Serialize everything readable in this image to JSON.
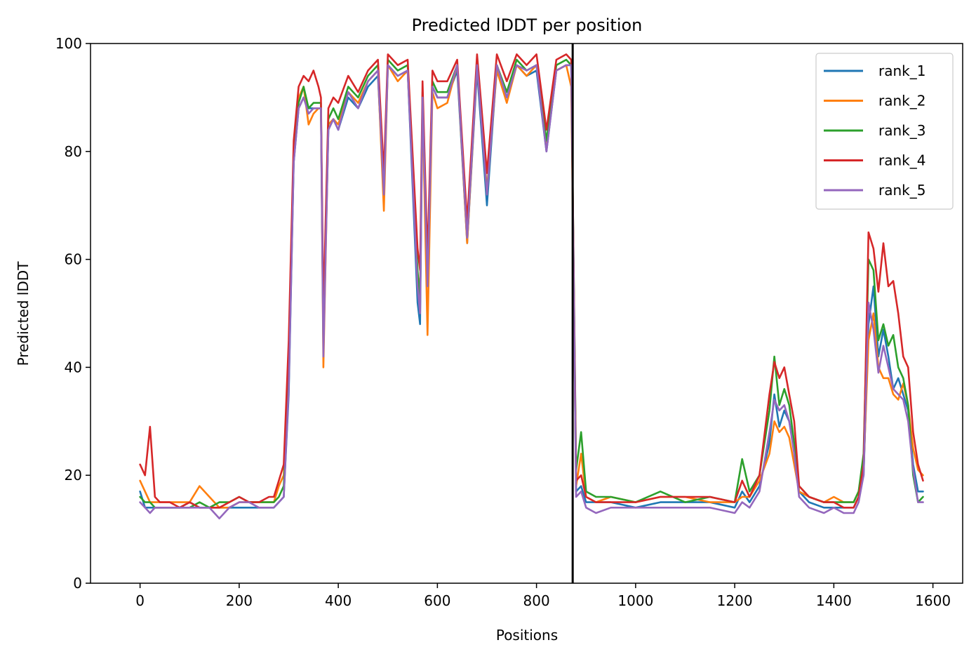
{
  "chart_data": {
    "type": "line",
    "title": "Predicted lDDT per position",
    "xlabel": "Positions",
    "ylabel": "Predicted lDDT",
    "xlim": [
      -100,
      1660
    ],
    "ylim": [
      0,
      100
    ],
    "xticks": [
      0,
      200,
      400,
      600,
      800,
      1000,
      1200,
      1400,
      1600
    ],
    "yticks": [
      0,
      20,
      40,
      60,
      80,
      100
    ],
    "grid": false,
    "legend_position": "top-right",
    "chain_boundary_x": 873,
    "sampled_positions": [
      0,
      10,
      20,
      30,
      40,
      60,
      80,
      100,
      120,
      140,
      160,
      180,
      200,
      220,
      240,
      260,
      270,
      280,
      290,
      300,
      310,
      320,
      330,
      340,
      350,
      360,
      365,
      370,
      380,
      390,
      400,
      420,
      440,
      460,
      480,
      492,
      500,
      520,
      540,
      560,
      565,
      570,
      580,
      590,
      600,
      620,
      640,
      660,
      680,
      700,
      720,
      740,
      760,
      780,
      800,
      820,
      840,
      860,
      870,
      880,
      890,
      900,
      920,
      950,
      1000,
      1050,
      1100,
      1150,
      1200,
      1215,
      1230,
      1250,
      1270,
      1280,
      1290,
      1300,
      1310,
      1320,
      1330,
      1350,
      1380,
      1400,
      1420,
      1440,
      1450,
      1460,
      1470,
      1480,
      1490,
      1500,
      1510,
      1520,
      1530,
      1540,
      1550,
      1560,
      1570,
      1580
    ],
    "series": [
      {
        "name": "rank_1",
        "color": "#1f77b4",
        "values": [
          17,
          14,
          14,
          14,
          14,
          14,
          14,
          15,
          14,
          14,
          14,
          14,
          14,
          14,
          14,
          14,
          14,
          15,
          16,
          35,
          78,
          88,
          90,
          88,
          88,
          88,
          88,
          45,
          84,
          86,
          84,
          90,
          88,
          92,
          94,
          72,
          96,
          94,
          95,
          52,
          48,
          90,
          56,
          92,
          90,
          90,
          95,
          63,
          95,
          70,
          96,
          90,
          96,
          94,
          95,
          80,
          95,
          96,
          96,
          17,
          18,
          15,
          15,
          15,
          14,
          15,
          15,
          15,
          14,
          17,
          15,
          18,
          26,
          35,
          29,
          32,
          30,
          25,
          17,
          15,
          14,
          14,
          14,
          14,
          16,
          20,
          48,
          55,
          42,
          47,
          42,
          36,
          38,
          35,
          32,
          22,
          17,
          17
        ]
      },
      {
        "name": "rank_2",
        "color": "#ff7f0e",
        "values": [
          19,
          17,
          15,
          15,
          15,
          15,
          15,
          15,
          18,
          16,
          14,
          14,
          15,
          15,
          15,
          15,
          15,
          18,
          20,
          40,
          80,
          90,
          92,
          85,
          87,
          88,
          88,
          40,
          85,
          86,
          85,
          91,
          89,
          93,
          95,
          69,
          96,
          93,
          95,
          57,
          55,
          89,
          46,
          91,
          88,
          89,
          96,
          63,
          96,
          73,
          95,
          89,
          96,
          94,
          96,
          81,
          95,
          96,
          92,
          18,
          24,
          16,
          15,
          16,
          15,
          16,
          16,
          15,
          15,
          16,
          16,
          19,
          24,
          30,
          28,
          29,
          27,
          22,
          17,
          16,
          15,
          16,
          15,
          15,
          17,
          21,
          45,
          50,
          40,
          38,
          38,
          35,
          34,
          37,
          33,
          25,
          21,
          20
        ]
      },
      {
        "name": "rank_3",
        "color": "#2ca02c",
        "values": [
          16,
          15,
          15,
          14,
          14,
          14,
          14,
          14,
          15,
          14,
          15,
          15,
          16,
          15,
          15,
          15,
          15,
          16,
          18,
          38,
          79,
          89,
          92,
          88,
          89,
          89,
          89,
          44,
          86,
          88,
          86,
          92,
          90,
          94,
          96,
          73,
          97,
          95,
          96,
          58,
          52,
          91,
          58,
          93,
          91,
          91,
          96,
          65,
          96,
          72,
          96,
          91,
          97,
          95,
          96,
          82,
          96,
          97,
          96,
          21,
          28,
          17,
          16,
          16,
          15,
          17,
          15,
          16,
          15,
          23,
          17,
          20,
          32,
          42,
          33,
          36,
          33,
          26,
          18,
          16,
          15,
          15,
          15,
          15,
          17,
          24,
          60,
          58,
          45,
          48,
          44,
          46,
          40,
          38,
          33,
          20,
          15,
          16
        ]
      },
      {
        "name": "rank_4",
        "color": "#d62728",
        "values": [
          22,
          20,
          29,
          16,
          15,
          15,
          14,
          15,
          14,
          14,
          14,
          15,
          16,
          15,
          15,
          16,
          16,
          19,
          22,
          45,
          82,
          92,
          94,
          93,
          95,
          92,
          90,
          50,
          88,
          90,
          89,
          94,
          91,
          95,
          97,
          76,
          98,
          96,
          97,
          62,
          58,
          93,
          60,
          95,
          93,
          93,
          97,
          67,
          98,
          76,
          98,
          93,
          98,
          96,
          98,
          84,
          97,
          98,
          97,
          19,
          20,
          16,
          15,
          15,
          15,
          16,
          16,
          16,
          15,
          19,
          16,
          20,
          35,
          41,
          38,
          40,
          35,
          30,
          18,
          16,
          15,
          15,
          14,
          14,
          16,
          22,
          65,
          62,
          54,
          63,
          55,
          56,
          50,
          42,
          40,
          28,
          22,
          19
        ]
      },
      {
        "name": "rank_5",
        "color": "#9467bd",
        "values": [
          15,
          14,
          13,
          14,
          14,
          14,
          14,
          14,
          14,
          14,
          12,
          14,
          15,
          15,
          14,
          14,
          14,
          15,
          16,
          36,
          78,
          88,
          90,
          87,
          88,
          88,
          88,
          42,
          84,
          86,
          84,
          91,
          88,
          93,
          95,
          72,
          96,
          94,
          95,
          55,
          50,
          90,
          55,
          92,
          90,
          90,
          96,
          64,
          96,
          72,
          96,
          90,
          96,
          95,
          96,
          80,
          95,
          96,
          96,
          16,
          17,
          14,
          13,
          14,
          14,
          14,
          14,
          14,
          13,
          15,
          14,
          17,
          28,
          34,
          32,
          33,
          30,
          24,
          16,
          14,
          13,
          14,
          13,
          13,
          15,
          20,
          52,
          47,
          39,
          44,
          40,
          36,
          35,
          34,
          30,
          21,
          15,
          15
        ]
      }
    ]
  }
}
